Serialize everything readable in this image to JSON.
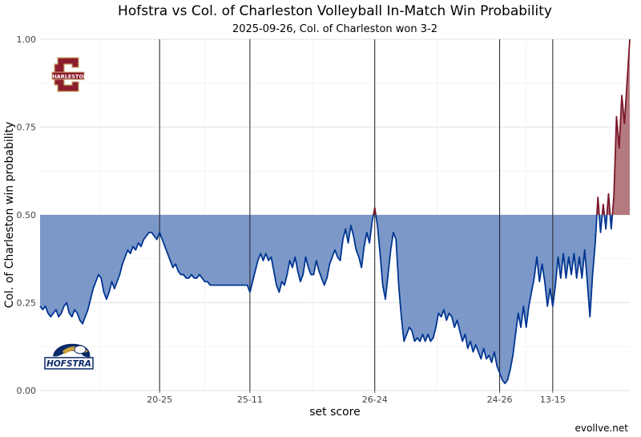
{
  "chart_data": {
    "type": "area",
    "title": "Hofstra vs Col. of Charleston Volleyball In-Match Win Probability",
    "subtitle": "2025-09-26, Col. of Charleston won 3-2",
    "xlabel": "set score",
    "ylabel": "Col. of Charleston win probability",
    "ylim": [
      0,
      1
    ],
    "y_ticks": [
      "0.00",
      "0.25",
      "0.50",
      "0.75",
      "1.00"
    ],
    "baseline": 0.5,
    "grid": true,
    "set_end_labels": [
      "20-25",
      "25-11",
      "26-24",
      "24-26",
      "13-15"
    ],
    "set_end_points": [
      45,
      79,
      126,
      173,
      193
    ],
    "colors": {
      "hofstra": "#003591",
      "hofstra_fill": "#7b98c8",
      "charleston": "#7a1828",
      "charleston_fill": "#b47a80"
    },
    "series": [
      {
        "values": [
          0.24,
          0.23,
          0.24,
          0.22,
          0.21,
          0.22,
          0.23,
          0.21,
          0.22,
          0.24,
          0.25,
          0.22,
          0.21,
          0.23,
          0.22,
          0.2,
          0.19,
          0.21,
          0.23,
          0.26,
          0.29,
          0.31,
          0.33,
          0.32,
          0.28,
          0.26,
          0.28,
          0.31,
          0.29,
          0.31,
          0.33,
          0.36,
          0.38,
          0.4,
          0.39,
          0.41,
          0.4,
          0.42,
          0.41,
          0.43,
          0.44,
          0.45,
          0.45,
          0.44,
          0.43,
          0.45,
          0.43,
          0.41,
          0.39,
          0.37,
          0.35,
          0.36,
          0.34,
          0.33,
          0.33,
          0.32,
          0.32,
          0.33,
          0.32,
          0.32,
          0.33,
          0.32,
          0.31,
          0.31,
          0.3,
          0.3,
          0.3,
          0.3,
          0.3,
          0.3,
          0.3,
          0.3,
          0.3,
          0.3,
          0.3,
          0.3,
          0.3,
          0.3,
          0.3,
          0.28,
          0.31,
          0.34,
          0.37,
          0.39,
          0.37,
          0.39,
          0.37,
          0.38,
          0.34,
          0.3,
          0.28,
          0.31,
          0.3,
          0.33,
          0.37,
          0.35,
          0.38,
          0.34,
          0.31,
          0.33,
          0.38,
          0.35,
          0.33,
          0.33,
          0.37,
          0.34,
          0.32,
          0.3,
          0.32,
          0.36,
          0.38,
          0.4,
          0.38,
          0.37,
          0.43,
          0.46,
          0.42,
          0.47,
          0.44,
          0.4,
          0.38,
          0.35,
          0.41,
          0.45,
          0.42,
          0.48,
          0.52,
          0.47,
          0.39,
          0.3,
          0.26,
          0.33,
          0.4,
          0.45,
          0.43,
          0.3,
          0.21,
          0.14,
          0.16,
          0.18,
          0.17,
          0.14,
          0.15,
          0.14,
          0.16,
          0.14,
          0.16,
          0.14,
          0.15,
          0.18,
          0.22,
          0.21,
          0.23,
          0.2,
          0.22,
          0.21,
          0.18,
          0.2,
          0.17,
          0.14,
          0.16,
          0.12,
          0.14,
          0.11,
          0.13,
          0.11,
          0.09,
          0.12,
          0.09,
          0.1,
          0.08,
          0.11,
          0.07,
          0.05,
          0.03,
          0.02,
          0.03,
          0.06,
          0.1,
          0.16,
          0.22,
          0.18,
          0.24,
          0.18,
          0.24,
          0.28,
          0.32,
          0.38,
          0.31,
          0.36,
          0.31,
          0.24,
          0.29,
          0.24,
          0.3,
          0.38,
          0.32,
          0.39,
          0.32,
          0.38,
          0.33,
          0.39,
          0.32,
          0.38,
          0.32,
          0.4,
          0.31,
          0.21,
          0.33,
          0.42,
          0.55,
          0.45,
          0.53,
          0.46,
          0.56,
          0.46,
          0.55,
          0.78,
          0.69,
          0.84,
          0.76,
          0.88,
          1.0
        ]
      }
    ]
  },
  "logos": {
    "top": {
      "name": "Charleston logo",
      "text": "CHARLESTON",
      "letter": "C"
    },
    "bottom": {
      "name": "Hofstra logo",
      "text": "HOFSTRA"
    }
  },
  "caption": "evollve.net"
}
